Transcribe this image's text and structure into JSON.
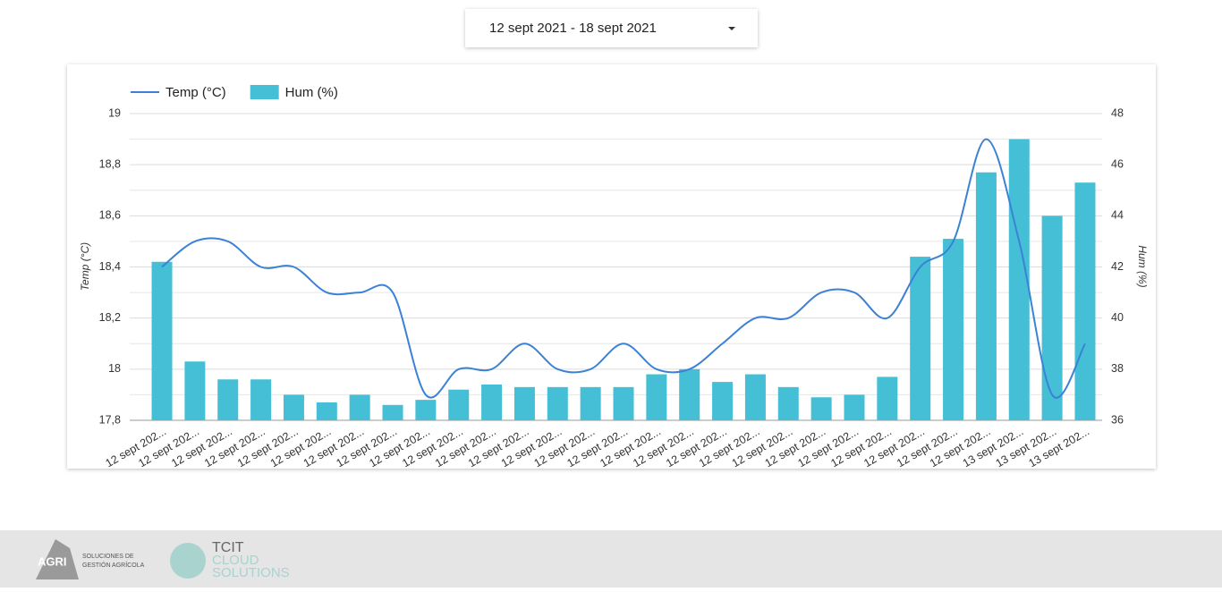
{
  "date_range": "12 sept 2021 - 18 sept 2021",
  "chart_data": {
    "type": "combo",
    "ylabel": "Temp (°C)",
    "y2label": "Hum (%)",
    "categories": [
      "12 sept 202...",
      "12 sept 202...",
      "12 sept 202...",
      "12 sept 202...",
      "12 sept 202...",
      "12 sept 202...",
      "12 sept 202...",
      "12 sept 202...",
      "12 sept 202...",
      "12 sept 202...",
      "12 sept 202...",
      "12 sept 202...",
      "12 sept 202...",
      "12 sept 202...",
      "12 sept 202...",
      "12 sept 202...",
      "12 sept 202...",
      "12 sept 202...",
      "12 sept 202...",
      "12 sept 202...",
      "12 sept 202...",
      "12 sept 202...",
      "12 sept 202...",
      "12 sept 202...",
      "12 sept 202...",
      "12 sept 202...",
      "13 sept 202...",
      "13 sept 202...",
      "13 sept 202..."
    ],
    "series": [
      {
        "name": "Temp (°C)",
        "type": "line",
        "color": "#3b82d6",
        "axis": "y",
        "values": [
          18.4,
          18.5,
          18.5,
          18.4,
          18.4,
          18.3,
          18.3,
          18.3,
          17.9,
          18.0,
          18.0,
          18.1,
          18.0,
          18.0,
          18.1,
          18.0,
          18.0,
          18.1,
          18.2,
          18.2,
          18.3,
          18.3,
          18.2,
          18.4,
          18.5,
          18.9,
          18.5,
          17.9,
          18.1
        ]
      },
      {
        "name": "Hum (%)",
        "type": "bar",
        "color": "#44bfd6",
        "axis": "y2",
        "values": [
          42.2,
          38.3,
          37.6,
          37.6,
          37.0,
          36.7,
          37.0,
          36.6,
          36.8,
          37.2,
          37.4,
          37.3,
          37.3,
          37.3,
          37.3,
          37.8,
          38.0,
          37.5,
          37.8,
          37.3,
          36.9,
          37.0,
          37.7,
          42.4,
          43.1,
          45.7,
          47.0,
          44.0,
          45.3
        ]
      }
    ],
    "ylim": [
      17.8,
      19
    ],
    "yticks": [
      {
        "value": 17.8,
        "label": "17,8"
      },
      18,
      {
        "value": 18.2,
        "label": "18,2"
      },
      {
        "value": 18.4,
        "label": "18,4"
      },
      {
        "value": 18.6,
        "label": "18,6"
      },
      {
        "value": 18.8,
        "label": "18,8"
      },
      19
    ],
    "y_minor_ticks": [
      17.9,
      18.1,
      18.3,
      18.5,
      18.7,
      18.9
    ],
    "y2lim": [
      36,
      48
    ],
    "y2ticks": [
      36,
      38,
      40,
      42,
      44,
      46,
      48
    ],
    "grid": true,
    "legend": "top-left"
  },
  "footer": {
    "agri_logo": "AGRI",
    "agri_tagline_1": "SOLUCIONES DE",
    "agri_tagline_2": "GESTIÓN AGRÍCOLA",
    "tcit_1": "TCIT",
    "tcit_2": "CLOUD",
    "tcit_3": "SOLUTIONS"
  }
}
